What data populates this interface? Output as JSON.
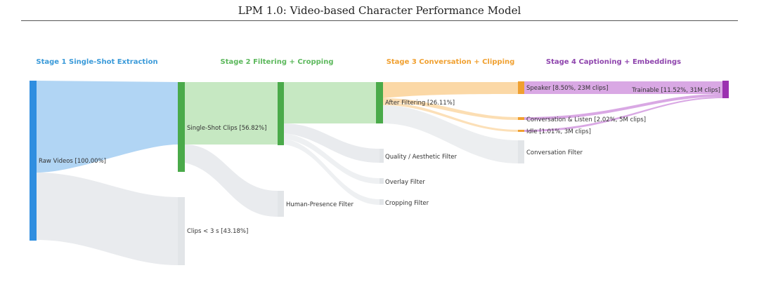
{
  "header": {
    "title": "LPM 1.0: Video-based Character Performance Model"
  },
  "stages": [
    {
      "label": "Stage 1 Single-Shot Extraction",
      "color": "#3a9ad9"
    },
    {
      "label": "Stage 2 Filtering + Cropping",
      "color": "#5cb85c"
    },
    {
      "label": "Stage 3 Conversation + Clipping",
      "color": "#f0a030"
    },
    {
      "label": "Stage 4 Captioning + Embeddings",
      "color": "#8e44ad"
    }
  ],
  "nodes": {
    "raw_videos": "Raw Videos [100.00%]",
    "single_shot": "Single-Shot Clips [56.82%]",
    "clips_short": "Clips < 3 s [43.18%]",
    "human_presence": "Human-Presence Filter",
    "after_filtering": "After Filtering [26.11%]",
    "quality": "Quality / Aesthetic Filter",
    "overlay": "Overlay Filter",
    "cropping": "Cropping Filter",
    "speaker": "Speaker [8.50%, 23M clips]",
    "conv_listen": "Conversation & Listen [2.02%, 5M clips]",
    "idle": "Idle [1.01%, 3M clips]",
    "conv_filter": "Conversation Filter",
    "trainable": "Trainable [11.52%, 31M clips]"
  },
  "colors": {
    "blue": "#2f8ee0",
    "blue_flow": "#a9d0f3",
    "green": "#4aaa4a",
    "green_flow": "#c6e8c2",
    "orange": "#f0a030",
    "orange_flow": "#fbd8a6",
    "purple": "#9b30b0",
    "purple_flow": "#d9a8e4",
    "gray_flow": "#e9ebee",
    "gray_node": "#e2e5e8"
  }
}
